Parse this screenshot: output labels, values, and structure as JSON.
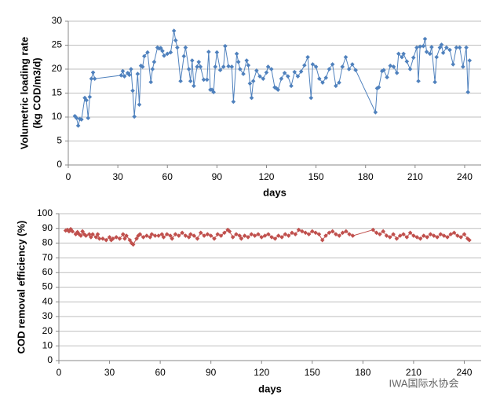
{
  "chart_data": [
    {
      "type": "line",
      "xlabel": "days",
      "ylabel": [
        "Volumetric loading rate",
        "(kg COD/m3/d)"
      ],
      "xlim": [
        0,
        250
      ],
      "xticks": [
        0,
        30,
        60,
        90,
        120,
        150,
        180,
        210,
        240
      ],
      "ylim": [
        0,
        30
      ],
      "yticks": [
        0,
        5,
        10,
        15,
        20,
        25,
        30
      ],
      "grid": true,
      "series": [
        {
          "color": "#4f81bd",
          "x": [
            4,
            5,
            6,
            7,
            8,
            10,
            11,
            12,
            13,
            14,
            15,
            16,
            32,
            33,
            34,
            36,
            37,
            38,
            39,
            40,
            42,
            43,
            44,
            45,
            46,
            48,
            50,
            51,
            52,
            54,
            55,
            56,
            57,
            58,
            60,
            62,
            64,
            65,
            66,
            68,
            70,
            71,
            73,
            74,
            75,
            76,
            78,
            79,
            80,
            82,
            84,
            85,
            86,
            87,
            88,
            89,
            90,
            92,
            94,
            95,
            97,
            99,
            100,
            102,
            103,
            104,
            106,
            108,
            109,
            110,
            111,
            112,
            114,
            116,
            118,
            120,
            121,
            123,
            125,
            126,
            127,
            129,
            131,
            133,
            135,
            137,
            139,
            141,
            143,
            145,
            147,
            148,
            150,
            152,
            154,
            156,
            158,
            160,
            162,
            164,
            166,
            168,
            170,
            172,
            174,
            186,
            187,
            188,
            190,
            191,
            193,
            195,
            197,
            199,
            200,
            202,
            203,
            205,
            207,
            209,
            211,
            212,
            213,
            215,
            216,
            217,
            219,
            220,
            222,
            223,
            225,
            226,
            227,
            229,
            231,
            233,
            235,
            237,
            239,
            241,
            242,
            243
          ],
          "values": [
            10.2,
            9.8,
            8.2,
            9.6,
            9.5,
            14,
            13.5,
            9.8,
            14.2,
            18,
            19.3,
            18,
            18.7,
            19.6,
            18.5,
            19.2,
            18.8,
            20,
            15.5,
            10.1,
            19,
            12.6,
            20.7,
            20.5,
            22.7,
            23.5,
            17.3,
            20,
            21.5,
            24.5,
            24.3,
            24.4,
            23.8,
            22.8,
            23.2,
            23.5,
            28,
            26,
            24.5,
            17.5,
            22.7,
            24.5,
            20,
            17.5,
            21.8,
            16.5,
            20.5,
            21.5,
            20.5,
            17.8,
            17.8,
            23.6,
            15.7,
            15.7,
            15.2,
            20.5,
            23.5,
            19.8,
            20.5,
            24.8,
            20.6,
            20.5,
            13.2,
            23.2,
            21.5,
            20,
            19,
            21.8,
            20.8,
            17,
            14,
            17.5,
            19.7,
            18.5,
            18,
            19.3,
            20.5,
            20,
            16.2,
            16,
            15.7,
            18,
            19.2,
            18.5,
            16.5,
            19.4,
            18.5,
            19.5,
            20.8,
            22.5,
            14,
            21,
            20.5,
            18,
            17.2,
            18.2,
            20,
            21,
            16.5,
            17.2,
            20.5,
            22.5,
            20,
            21,
            19.8,
            11,
            16,
            16.2,
            19.6,
            19.8,
            18.3,
            20.7,
            20.5,
            19.2,
            23.2,
            22.5,
            23.2,
            21.6,
            20,
            22.4,
            24.5,
            17.5,
            24.7,
            24.8,
            26.3,
            23.6,
            23.2,
            24.6,
            17.3,
            22.5,
            24.5,
            25.1,
            23.4,
            24.5,
            24,
            21,
            24.5,
            24.5,
            20.5,
            24.5,
            15.2,
            21.8
          ]
        }
      ]
    },
    {
      "type": "line",
      "xlabel": "days",
      "ylabel": [
        "COD removal efficiency (%)"
      ],
      "xlim": [
        0,
        250
      ],
      "xticks": [
        0,
        30,
        60,
        90,
        120,
        150,
        180,
        210,
        240
      ],
      "ylim": [
        0,
        100
      ],
      "yticks": [
        0,
        10,
        20,
        30,
        40,
        50,
        60,
        70,
        80,
        90,
        100
      ],
      "grid": true,
      "series": [
        {
          "color": "#c0504d",
          "x": [
            4,
            5,
            6,
            7,
            8,
            10,
            11,
            12,
            13,
            14,
            15,
            16,
            18,
            19,
            20,
            22,
            23,
            24,
            26,
            28,
            30,
            31,
            32,
            34,
            36,
            38,
            39,
            40,
            42,
            43,
            44,
            46,
            47,
            48,
            50,
            52,
            54,
            55,
            57,
            59,
            61,
            62,
            64,
            66,
            67,
            69,
            71,
            73,
            75,
            77,
            78,
            80,
            82,
            84,
            86,
            88,
            90,
            92,
            94,
            96,
            98,
            100,
            101,
            103,
            105,
            107,
            108,
            110,
            112,
            114,
            116,
            118,
            120,
            122,
            124,
            126,
            128,
            130,
            132,
            134,
            136,
            138,
            140,
            142,
            144,
            146,
            148,
            150,
            152,
            154,
            156,
            158,
            160,
            162,
            164,
            166,
            168,
            170,
            172,
            174,
            186,
            188,
            190,
            192,
            194,
            196,
            198,
            200,
            202,
            204,
            206,
            208,
            210,
            212,
            214,
            216,
            218,
            220,
            222,
            224,
            226,
            228,
            230,
            232,
            234,
            236,
            238,
            240,
            242,
            243
          ],
          "values": [
            88.5,
            89,
            88,
            89.5,
            88,
            86,
            87.5,
            86,
            85,
            88,
            86,
            85,
            86,
            84,
            86,
            84,
            86,
            83,
            83,
            82,
            84,
            82,
            83,
            84,
            83,
            86,
            83,
            85,
            82,
            80,
            79,
            83,
            85,
            86,
            84,
            85,
            84,
            86,
            85,
            85,
            86,
            84,
            86,
            85,
            83,
            86,
            85,
            87,
            85,
            84,
            86,
            85,
            83,
            87,
            85,
            86,
            85,
            83,
            86,
            85,
            87,
            89,
            88,
            84,
            86,
            85,
            83,
            85,
            84,
            86,
            85,
            86,
            84,
            85,
            86,
            84,
            83,
            85,
            84,
            86,
            85,
            87,
            86,
            89,
            88,
            87,
            86,
            88,
            87,
            86,
            82,
            85,
            87,
            88,
            86,
            85,
            87,
            88,
            86,
            85,
            89,
            87,
            86,
            88,
            85,
            84,
            86,
            83,
            85,
            86,
            84,
            87,
            85,
            84,
            83,
            85,
            84,
            86,
            85,
            84,
            86,
            85,
            84,
            86,
            87,
            85,
            84,
            86,
            83,
            82
          ]
        }
      ]
    }
  ],
  "watermark": "IWA国际水协会"
}
